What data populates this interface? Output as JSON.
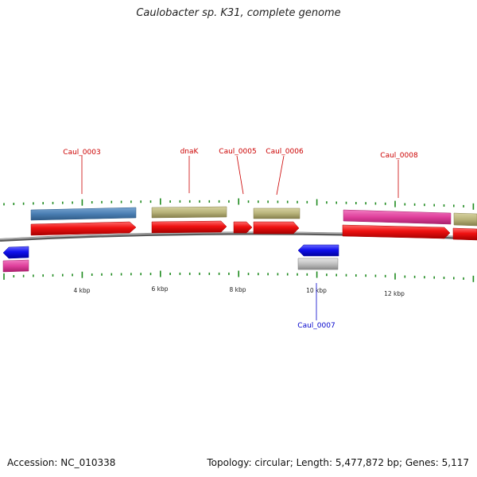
{
  "title": "Caulobacter sp. K31, complete genome",
  "accession": "Accession: NC_010338",
  "summary": "Topology: circular; Length: 5,477,872 bp; Genes: 5,117",
  "colors": {
    "backbone": "#8a8a8a",
    "cds_forward": "#ee1111",
    "cds_reverse": "#1111ee",
    "label_forward": "#cc0000",
    "label_reverse": "#0000cc",
    "tick": "#1e8a1e",
    "steelblue": "#4a7fb3",
    "khaki": "#b8b37a",
    "pink": "#e0409c",
    "grey": "#c0c0c0"
  },
  "scale_labels": [
    "4 kbp",
    "6 kbp",
    "8 kbp",
    "10 kbp",
    "12 kbp"
  ],
  "gene_labels": [
    {
      "name": "Caul_0003",
      "strand": "forward"
    },
    {
      "name": "dnaK",
      "strand": "forward"
    },
    {
      "name": "Caul_0005",
      "strand": "forward"
    },
    {
      "name": "Caul_0006",
      "strand": "forward"
    },
    {
      "name": "Caul_0008",
      "strand": "forward"
    },
    {
      "name": "Caul_0007",
      "strand": "reverse"
    }
  ]
}
